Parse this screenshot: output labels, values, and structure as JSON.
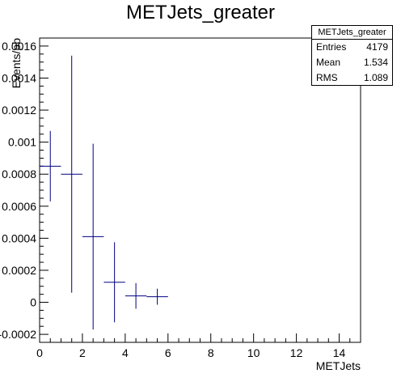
{
  "chart_data": {
    "type": "histogram",
    "title": "METJets_greater",
    "xlabel": "METJets",
    "ylabel": "Events/pb",
    "xlim": [
      0,
      15
    ],
    "ylim": [
      -0.00025,
      0.00165
    ],
    "x_ticks": [
      "0",
      "2",
      "4",
      "6",
      "8",
      "10",
      "12",
      "14"
    ],
    "y_ticks": [
      "-0.0002",
      "0",
      "0.0002",
      "0.0004",
      "0.0006",
      "0.0008",
      "0.001",
      "0.0012",
      "0.0014",
      "0.0016"
    ],
    "bins": [
      {
        "x_low": 0,
        "x_high": 1,
        "y": 0.00085,
        "err": 0.00022
      },
      {
        "x_low": 1,
        "x_high": 2,
        "y": 0.0008,
        "err": 0.00074
      },
      {
        "x_low": 2,
        "x_high": 3,
        "y": 0.00041,
        "err": 0.00058
      },
      {
        "x_low": 3,
        "x_high": 4,
        "y": 0.000125,
        "err": 0.00025
      },
      {
        "x_low": 4,
        "x_high": 5,
        "y": 4e-05,
        "err": 8e-05
      },
      {
        "x_low": 5,
        "x_high": 6,
        "y": 3.5e-05,
        "err": 5e-05
      }
    ],
    "line_color": "#000080",
    "stats": {
      "name": "METJets_greater",
      "entries_label": "Entries",
      "entries": "4179",
      "mean_label": "Mean",
      "mean": "1.534",
      "rms_label": "RMS",
      "rms": "1.089"
    }
  }
}
